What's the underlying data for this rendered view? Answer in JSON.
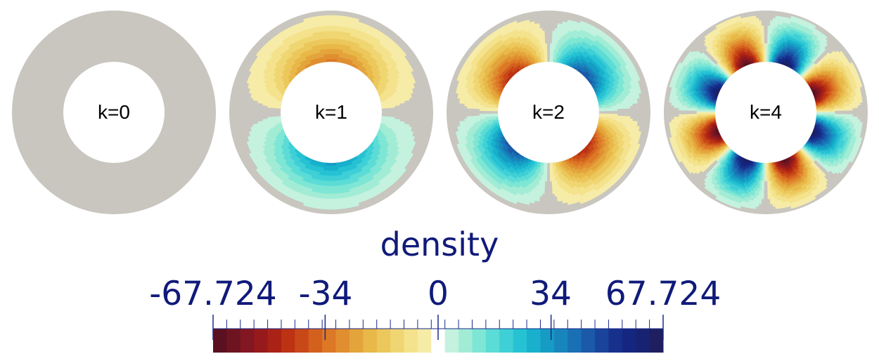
{
  "panels": [
    {
      "label": "k=0",
      "mode": 0
    },
    {
      "label": "k=1",
      "mode": 1
    },
    {
      "label": "k=2",
      "mode": 2
    },
    {
      "label": "k=4",
      "mode": 4
    }
  ],
  "colorbar": {
    "title": "density",
    "min": -67.724,
    "max": 67.724,
    "tick_labels": [
      "-67.724",
      "-34",
      "0",
      "34",
      "67.724"
    ],
    "tick_values": [
      -67.724,
      -34,
      0,
      34,
      67.724
    ],
    "background_color": "#c8c6bf",
    "colors": [
      "#5a1020",
      "#6e1420",
      "#821622",
      "#961a1c",
      "#aa2216",
      "#bc3212",
      "#c84818",
      "#d4601e",
      "#dc7826",
      "#e08e30",
      "#e4a43c",
      "#e8b848",
      "#ecc85c",
      "#f0d672",
      "#f4e28c",
      "#f6eca8",
      "#c8c6bf",
      "#c4f2de",
      "#a2ecd6",
      "#7ee6d4",
      "#5cdcd6",
      "#3ed0d6",
      "#26c2d4",
      "#18b0cc",
      "#169cc4",
      "#1886bc",
      "#1a70b4",
      "#1a5aa8",
      "#1a449c",
      "#16308c",
      "#142680",
      "#182272",
      "#1e1e60"
    ]
  }
}
